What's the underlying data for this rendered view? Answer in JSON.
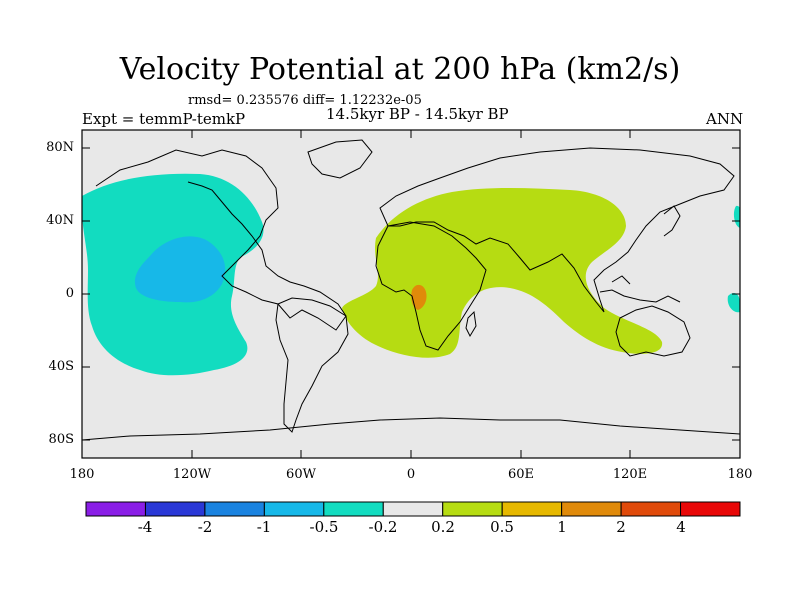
{
  "title": "Velocity Potential at 200 hPa (km2/s)",
  "stats": "rmsd= 0.235576 diff= 1.12232e-05",
  "experiment": "Expt = temmP-temkP",
  "period": "14.5kyr BP - 14.5kyr BP",
  "season": "ANN",
  "axes": {
    "y_ticks": [
      "80N",
      "40N",
      "0",
      "40S",
      "80S"
    ],
    "x_ticks": [
      "180",
      "120W",
      "60W",
      "0",
      "60E",
      "120E",
      "180"
    ]
  },
  "colorbar": {
    "labels": [
      "-4",
      "-2",
      "-1",
      "-0.5",
      "-0.2",
      "0.2",
      "0.5",
      "1",
      "2",
      "4"
    ],
    "colors": [
      "#8a1ee6",
      "#2a38d6",
      "#1a83e0",
      "#17b8e8",
      "#12dcc0",
      "#e8e8e8",
      "#b6dc12",
      "#e6b800",
      "#e08a0a",
      "#e04a0a",
      "#e80808"
    ]
  },
  "map_colors": {
    "background": "#e8e8e8",
    "negative_light": "#12dcc0",
    "negative_mid": "#17b8e8",
    "positive_light": "#b6dc12",
    "positive_mid": "#e08a0a"
  }
}
